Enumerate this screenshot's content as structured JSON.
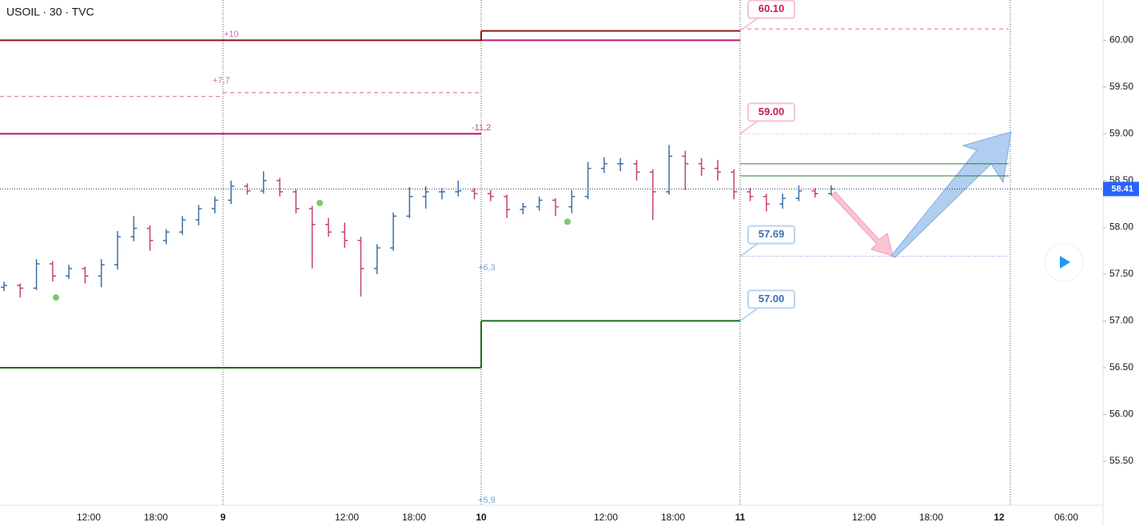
{
  "chart_data": {
    "type": "ohlc",
    "title": "USOIL · 30 · TVC",
    "ylim": [
      55.03,
      60.43
    ],
    "yticks": [
      {
        "value": 60,
        "label": "60.00"
      },
      {
        "value": 59.5,
        "label": "59.50"
      },
      {
        "value": 59,
        "label": "59.00"
      },
      {
        "value": 58.5,
        "label": "58.50"
      },
      {
        "value": 58,
        "label": "58.00"
      },
      {
        "value": 57.5,
        "label": "57.50"
      },
      {
        "value": 57,
        "label": "57.00"
      },
      {
        "value": 56.5,
        "label": "56.50"
      },
      {
        "value": 56,
        "label": "56.00"
      },
      {
        "value": 55.5,
        "label": "55.50"
      }
    ],
    "xticks": [
      "12:00",
      "18:00",
      "9",
      "12:00",
      "18:00",
      "10",
      "12:00",
      "18:00",
      "11",
      "12:00",
      "18:00",
      "12",
      "06:00"
    ],
    "up_color": "#3a6fa8",
    "down_color": "#c2407a",
    "ohlc": [
      [
        57.36,
        57.42,
        57.32,
        57.38
      ],
      [
        57.38,
        57.4,
        57.25,
        57.35
      ],
      [
        57.35,
        57.66,
        57.33,
        57.61
      ],
      [
        57.61,
        57.64,
        57.42,
        57.48
      ],
      [
        57.48,
        57.6,
        57.45,
        57.56
      ],
      [
        57.56,
        57.58,
        57.4,
        57.48
      ],
      [
        57.48,
        57.66,
        57.36,
        57.6
      ],
      [
        57.6,
        57.96,
        57.55,
        57.9
      ],
      [
        57.9,
        58.12,
        57.85,
        57.99
      ],
      [
        57.99,
        58.02,
        57.75,
        57.86
      ],
      [
        57.86,
        57.98,
        57.82,
        57.95
      ],
      [
        57.95,
        58.12,
        57.92,
        58.08
      ],
      [
        58.08,
        58.24,
        58.02,
        58.2
      ],
      [
        58.2,
        58.33,
        58.15,
        58.29
      ],
      [
        58.29,
        58.5,
        58.25,
        58.44
      ],
      [
        58.44,
        58.47,
        58.35,
        58.39
      ],
      [
        58.39,
        58.6,
        58.36,
        58.5
      ],
      [
        58.5,
        58.53,
        58.33,
        58.38
      ],
      [
        58.38,
        58.41,
        58.15,
        58.2
      ],
      [
        58.2,
        58.23,
        57.56,
        58.03
      ],
      [
        58.03,
        58.1,
        57.9,
        57.95
      ],
      [
        57.95,
        58.05,
        57.78,
        57.86
      ],
      [
        57.86,
        57.9,
        57.26,
        57.56
      ],
      [
        57.56,
        57.82,
        57.5,
        57.78
      ],
      [
        57.78,
        58.16,
        57.75,
        58.12
      ],
      [
        58.12,
        58.43,
        58.1,
        58.33
      ],
      [
        58.33,
        58.44,
        58.2,
        58.38
      ],
      [
        58.38,
        58.42,
        58.3,
        58.38
      ],
      [
        58.38,
        58.5,
        58.33,
        58.39
      ],
      [
        58.39,
        58.42,
        58.3,
        58.36
      ],
      [
        58.36,
        58.4,
        58.28,
        58.33
      ],
      [
        58.33,
        58.35,
        58.1,
        58.19
      ],
      [
        58.19,
        58.26,
        58.14,
        58.22
      ],
      [
        58.22,
        58.33,
        58.18,
        58.29
      ],
      [
        58.29,
        58.31,
        58.12,
        58.22
      ],
      [
        58.22,
        58.4,
        58.15,
        58.33
      ],
      [
        58.33,
        58.7,
        58.3,
        58.63
      ],
      [
        58.63,
        58.75,
        58.58,
        58.68
      ],
      [
        58.68,
        58.74,
        58.6,
        58.68
      ],
      [
        58.68,
        58.72,
        58.5,
        58.59
      ],
      [
        58.59,
        58.62,
        58.08,
        58.38
      ],
      [
        58.38,
        58.88,
        58.35,
        58.76
      ],
      [
        58.76,
        58.82,
        58.4,
        58.68
      ],
      [
        58.68,
        58.74,
        58.55,
        58.63
      ],
      [
        58.63,
        58.72,
        58.5,
        58.59
      ],
      [
        58.59,
        58.62,
        58.3,
        58.38
      ],
      [
        58.38,
        58.42,
        58.28,
        58.33
      ],
      [
        58.33,
        58.36,
        58.17,
        58.25
      ],
      [
        58.25,
        58.36,
        58.2,
        58.31
      ],
      [
        58.31,
        58.45,
        58.28,
        58.39
      ],
      [
        58.39,
        58.42,
        58.32,
        58.36
      ],
      [
        58.36,
        58.45,
        58.34,
        58.41
      ]
    ],
    "markers": {
      "color": "#7cc96a",
      "values": [
        57.25,
        58.26,
        58.06
      ]
    },
    "levels": [
      {
        "value": 60,
        "color": "#8b1a1a",
        "style": "solid"
      },
      {
        "value": 60.1,
        "color": "#8b1a1a",
        "style": "solid"
      },
      {
        "value": 60,
        "color": "#c2187a",
        "style": "solid"
      },
      {
        "value": 59.4,
        "color": "#e07bb5",
        "style": "dashed"
      },
      {
        "value": 59.44,
        "color": "#e07bb5",
        "style": "dashed"
      },
      {
        "value": 59,
        "color": "#b5177a",
        "style": "solid"
      },
      {
        "value": 56.5,
        "color": "#1b6e1b",
        "style": "solid"
      },
      {
        "value": 57,
        "color": "#1b6e1b",
        "style": "solid"
      },
      {
        "value": 60.12,
        "color": "#f08a9c",
        "style": "dashed"
      },
      {
        "value": 59,
        "color": "#f2a7c3",
        "style": "dotted"
      },
      {
        "value": 58.68,
        "color": "#2e7d32",
        "style": "thin"
      },
      {
        "value": 58.55,
        "color": "#2e7d32",
        "style": "thin"
      },
      {
        "value": 57.69,
        "color": "#8f8fe0",
        "style": "dotted"
      }
    ],
    "annotations": [
      "+10",
      "+7,7",
      "-11,2",
      "+6,3",
      "+5,9"
    ],
    "callouts": {
      "values": [
        60.1,
        59,
        57.69,
        57
      ],
      "value_labels": [
        "60.10",
        "59.00",
        "57.69",
        "57.00"
      ],
      "colors": [
        "#c2185b",
        "#c2185b",
        "#3d6fb5",
        "#3d6fb5"
      ]
    },
    "last_price": {
      "value": 58.41,
      "label": "58.41",
      "color": "#2962ff"
    }
  }
}
